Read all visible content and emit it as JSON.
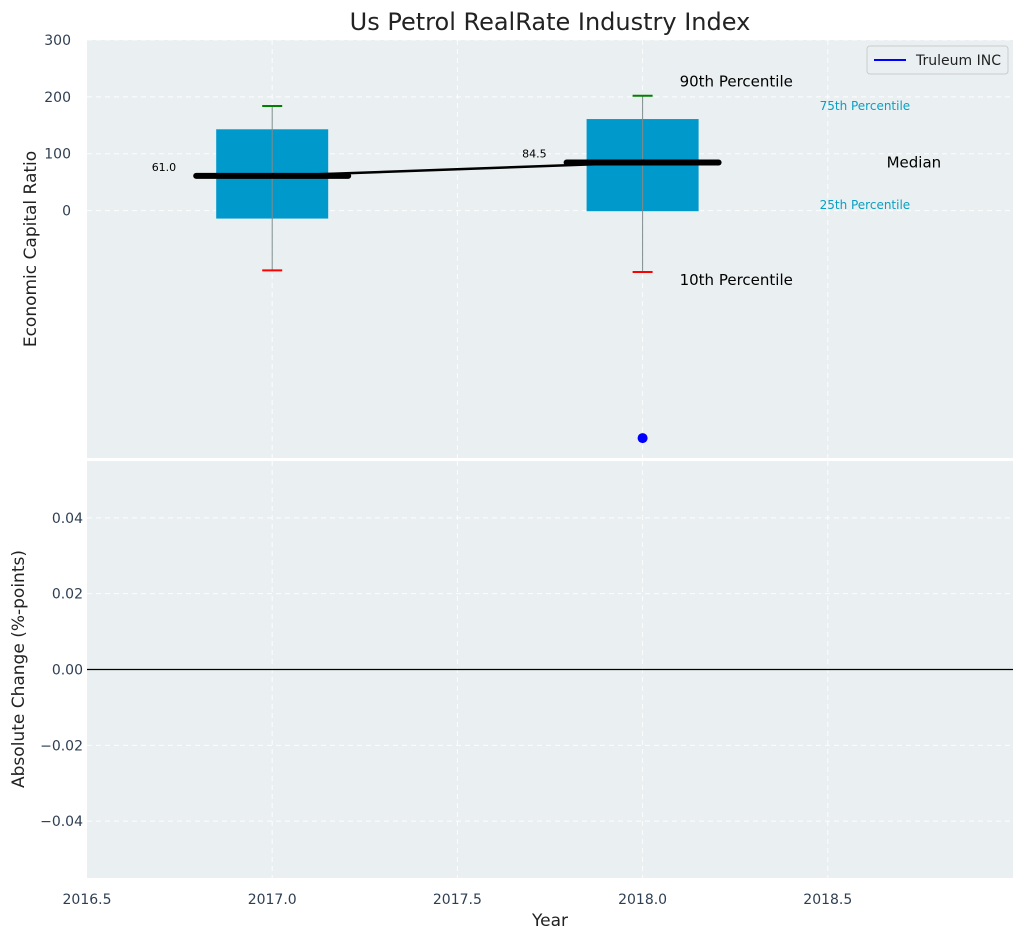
{
  "chart_data": [
    {
      "type": "box",
      "title": "Us Petrol RealRate Industry Index",
      "xlabel": "",
      "ylabel": "Economic Capital Ratio",
      "xlim": [
        2016.5,
        2019.0
      ],
      "ylim": [
        -435,
        300
      ],
      "y_ticks": [
        300,
        200,
        100,
        0
      ],
      "grid": true,
      "legend": {
        "placement": "top-right",
        "entries": [
          {
            "label": "Truleum INC",
            "color": "#0000ff"
          }
        ]
      },
      "colors": {
        "box": "#0099cc",
        "background": "#eaeff1",
        "p90": "#008000",
        "p10": "#ff0000",
        "median": "#000000",
        "company": "#0000ff"
      },
      "boxes": [
        {
          "x": 2017.0,
          "p10": -105,
          "p25": -14,
          "median": 61.0,
          "p75": 143,
          "p90": 184,
          "median_label": "61.0"
        },
        {
          "x": 2018.0,
          "p10": -108,
          "p25": -1,
          "median": 84.5,
          "p75": 161,
          "p90": 202,
          "median_label": "84.5"
        }
      ],
      "company_points": [
        {
          "x": 2018.0,
          "y": -400
        }
      ],
      "annotations": {
        "p90": "90th Percentile",
        "p75": "75th Percentile",
        "median": "Median",
        "p25": "25th Percentile",
        "p10": "10th Percentile"
      }
    },
    {
      "type": "line",
      "xlabel": "Year",
      "ylabel": "Absolute Change (%-points)",
      "xlim": [
        2016.5,
        2019.0
      ],
      "ylim": [
        -0.055,
        0.055
      ],
      "x_ticks": [
        2016.5,
        2017.0,
        2017.5,
        2018.0,
        2018.5
      ],
      "x_tick_labels": [
        "2016.5",
        "2017.0",
        "2017.5",
        "2018.0",
        "2018.5"
      ],
      "y_ticks": [
        0.04,
        0.02,
        0.0,
        -0.02,
        -0.04
      ],
      "y_tick_labels": [
        "0.04",
        "0.02",
        "0.00",
        "−0.02",
        "−0.04"
      ],
      "zero_line": 0.0,
      "grid": true,
      "series": []
    }
  ]
}
